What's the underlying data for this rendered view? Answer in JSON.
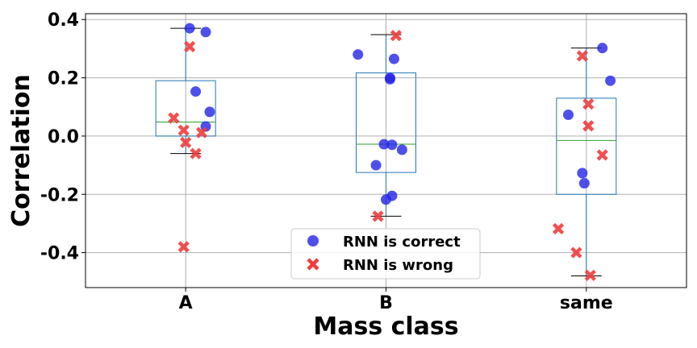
{
  "chart_data": {
    "type": "box+scatter",
    "xlabel": "Mass class",
    "ylabel": "Correlation",
    "categories": [
      "A",
      "B",
      "same"
    ],
    "ylim": [
      -0.52,
      0.42
    ],
    "yticks": [
      0.4,
      0.2,
      0.0,
      -0.2,
      -0.4
    ],
    "ytick_labels": [
      "0.4",
      "0.2",
      "0.0",
      "-0.2",
      "-0.4"
    ],
    "grid": true,
    "legend": {
      "placement": "lower-center",
      "entries": [
        "RNN is correct",
        "RNN is wrong"
      ]
    },
    "colors": {
      "correct": "#2323e6",
      "wrong": "#f03c3c",
      "box": "#1f77b4",
      "median": "#2ca02c",
      "grid": "#b0b0b0"
    },
    "boxes": [
      {
        "category": "A",
        "whisker_low": -0.06,
        "q1": 0.0,
        "median": 0.048,
        "q3": 0.19,
        "whisker_high": 0.37
      },
      {
        "category": "B",
        "whisker_low": -0.275,
        "q1": -0.125,
        "median": -0.028,
        "q3": 0.217,
        "whisker_high": 0.348
      },
      {
        "category": "same",
        "whisker_low": -0.48,
        "q1": -0.2,
        "median": -0.015,
        "q3": 0.13,
        "whisker_high": 0.302
      }
    ],
    "series": [
      {
        "name": "RNN is correct",
        "marker": "circle",
        "points": [
          {
            "x": 0.02,
            "y": 0.37
          },
          {
            "x": 0.1,
            "y": 0.357
          },
          {
            "x": 0.05,
            "y": 0.153
          },
          {
            "x": 0.12,
            "y": 0.083
          },
          {
            "x": 0.1,
            "y": 0.033
          },
          {
            "x": 0.86,
            "y": 0.28
          },
          {
            "x": 1.04,
            "y": 0.265
          },
          {
            "x": 1.02,
            "y": 0.2
          },
          {
            "x": 1.02,
            "y": 0.195
          },
          {
            "x": 0.99,
            "y": -0.028
          },
          {
            "x": 1.03,
            "y": -0.03
          },
          {
            "x": 1.08,
            "y": -0.047
          },
          {
            "x": 0.95,
            "y": -0.1
          },
          {
            "x": 1.03,
            "y": -0.205
          },
          {
            "x": 1.0,
            "y": -0.218
          },
          {
            "x": 2.08,
            "y": 0.302
          },
          {
            "x": 2.12,
            "y": 0.19
          },
          {
            "x": 1.91,
            "y": 0.073
          },
          {
            "x": 1.98,
            "y": -0.127
          },
          {
            "x": 1.99,
            "y": -0.162
          }
        ]
      },
      {
        "name": "RNN is wrong",
        "marker": "x",
        "points": [
          {
            "x": 0.02,
            "y": 0.307
          },
          {
            "x": -0.06,
            "y": 0.062
          },
          {
            "x": -0.01,
            "y": 0.02
          },
          {
            "x": 0.08,
            "y": 0.012
          },
          {
            "x": 0.0,
            "y": -0.022
          },
          {
            "x": 0.05,
            "y": -0.06
          },
          {
            "x": -0.01,
            "y": -0.38
          },
          {
            "x": 1.05,
            "y": 0.345
          },
          {
            "x": 0.96,
            "y": -0.275
          },
          {
            "x": 1.98,
            "y": 0.275
          },
          {
            "x": 2.01,
            "y": 0.11
          },
          {
            "x": 2.01,
            "y": 0.035
          },
          {
            "x": 2.08,
            "y": -0.065
          },
          {
            "x": 1.86,
            "y": -0.318
          },
          {
            "x": 1.95,
            "y": -0.4
          },
          {
            "x": 2.02,
            "y": -0.478
          }
        ]
      }
    ]
  }
}
